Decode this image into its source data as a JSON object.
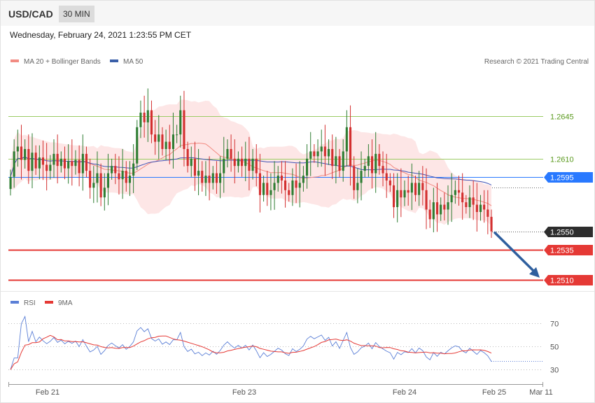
{
  "header": {
    "pair": "USD/CAD",
    "timeframe": "30 MIN",
    "timestamp": "Wednesday, February 24, 2021 1:23:55 PM CET"
  },
  "legend": {
    "ma20_label": "MA 20 + Bollinger Bands",
    "ma50_label": "MA 50",
    "credit": "Research © 2021 Trading Central",
    "rsi_label": "RSI",
    "rsi9_label": "9MA"
  },
  "colors": {
    "candle_up": "#2e7d32",
    "candle_down": "#d32f2f",
    "bollinger_fill": "#fde3e3",
    "ma20": "#f28b82",
    "ma50": "#3f51b5",
    "resistance": "#9ccc65",
    "support": "#e53935",
    "pivot": "#2979ff",
    "arrow": "#2f5f9e",
    "rsi": "#5b7fd6",
    "rsi9": "#e53935"
  },
  "chart_data": [
    {
      "type": "candlestick",
      "y_range": [
        1.2503,
        1.2685
      ],
      "price_levels": [
        {
          "value": 1.2645,
          "label": "1.2645",
          "kind": "resistance"
        },
        {
          "value": 1.261,
          "label": "1.2610",
          "kind": "resistance"
        },
        {
          "value": 1.2595,
          "label": "1.2595",
          "kind": "pivot"
        },
        {
          "value": 1.255,
          "label": "1.2550",
          "kind": "current"
        },
        {
          "value": 1.2535,
          "label": "1.2535",
          "kind": "support"
        },
        {
          "value": 1.251,
          "label": "1.2510",
          "kind": "support"
        }
      ],
      "x_ticks": [
        "Feb 21",
        "Feb 23",
        "Feb 24",
        "Feb 25",
        "Mar 11"
      ],
      "closes": [
        1.2595,
        1.2616,
        1.262,
        1.2609,
        1.2618,
        1.26,
        1.2615,
        1.2602,
        1.2611,
        1.2605,
        1.26,
        1.2605,
        1.2614,
        1.2604,
        1.261,
        1.2602,
        1.2608,
        1.2604,
        1.2609,
        1.2598,
        1.2614,
        1.26,
        1.2586,
        1.259,
        1.2598,
        1.2578,
        1.2586,
        1.2598,
        1.2604,
        1.2598,
        1.2593,
        1.26,
        1.259,
        1.2596,
        1.2606,
        1.2636,
        1.2648,
        1.264,
        1.265,
        1.263,
        1.2624,
        1.263,
        1.2618,
        1.2624,
        1.2618,
        1.263,
        1.263,
        1.265,
        1.2618,
        1.2604,
        1.261,
        1.2596,
        1.26,
        1.259,
        1.2596,
        1.259,
        1.2598,
        1.259,
        1.2598,
        1.261,
        1.2618,
        1.261,
        1.2604,
        1.261,
        1.2604,
        1.261,
        1.26,
        1.261,
        1.2598,
        1.258,
        1.259,
        1.258,
        1.2584,
        1.259,
        1.2596,
        1.2592,
        1.2584,
        1.258,
        1.2592,
        1.2586,
        1.259,
        1.2596,
        1.261,
        1.2616,
        1.2612,
        1.2616,
        1.262,
        1.2612,
        1.2618,
        1.2604,
        1.2612,
        1.26,
        1.2616,
        1.2636,
        1.2604,
        1.2584,
        1.259,
        1.26,
        1.2604,
        1.2612,
        1.2598,
        1.2614,
        1.2604,
        1.2598,
        1.2592,
        1.2588,
        1.257,
        1.2584,
        1.2578,
        1.2584,
        1.2582,
        1.259,
        1.258,
        1.259,
        1.2584,
        1.2568,
        1.256,
        1.2574,
        1.2564,
        1.2572,
        1.2568,
        1.2574,
        1.258,
        1.2584,
        1.2582,
        1.2574,
        1.257,
        1.2578,
        1.2572,
        1.2566,
        1.2572,
        1.2568,
        1.2562,
        1.255
      ]
    },
    {
      "type": "line",
      "title": "RSI",
      "y_range": [
        20,
        80
      ],
      "y_ticks": [
        70,
        50,
        30
      ]
    }
  ]
}
